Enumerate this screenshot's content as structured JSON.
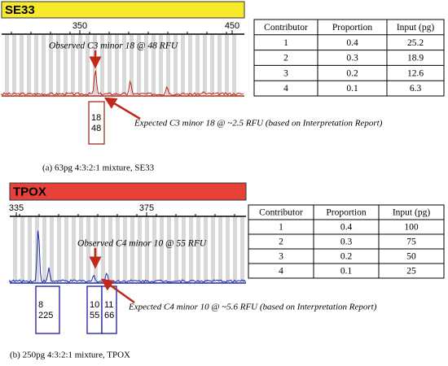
{
  "panels": [
    {
      "locus": "SE33",
      "axis_labels": [
        "350",
        "450"
      ],
      "observed": "Observed C3 minor 18 @ 48 RFU",
      "alleles": [
        [
          "18",
          "48"
        ]
      ],
      "expected": "Expected C3 minor 18 @ ~2.5 RFU (based on Interpretation Report)",
      "caption": "(a)  63pg 4:3:2:1 mixture, SE33",
      "table": {
        "header": [
          "Contributor",
          "Proportion",
          "Input (pg)"
        ],
        "rows": [
          [
            "1",
            "0.4",
            "25.2"
          ],
          [
            "2",
            "0.3",
            "18.9"
          ],
          [
            "3",
            "0.2",
            "12.6"
          ],
          [
            "4",
            "0.1",
            "6.3"
          ]
        ]
      }
    },
    {
      "locus": "TPOX",
      "axis_labels": [
        "335",
        "375"
      ],
      "observed": "Observed C4 minor 10 @ 55 RFU",
      "alleles": [
        [
          "8",
          "225"
        ],
        [
          "10",
          "55"
        ],
        [
          "11",
          "66"
        ]
      ],
      "expected": "Expected C4 minor 10 @ ~5.6 RFU (based on Interpretation Report)",
      "caption": "(b) 250pg 4:3:2:1 mixture, TPOX",
      "table": {
        "header": [
          "Contributor",
          "Proportion",
          "Input (pg)"
        ],
        "rows": [
          [
            "1",
            "0.4",
            "100"
          ],
          [
            "2",
            "0.3",
            "75"
          ],
          [
            "3",
            "0.2",
            "50"
          ],
          [
            "4",
            "0.1",
            "25"
          ]
        ]
      }
    }
  ]
}
